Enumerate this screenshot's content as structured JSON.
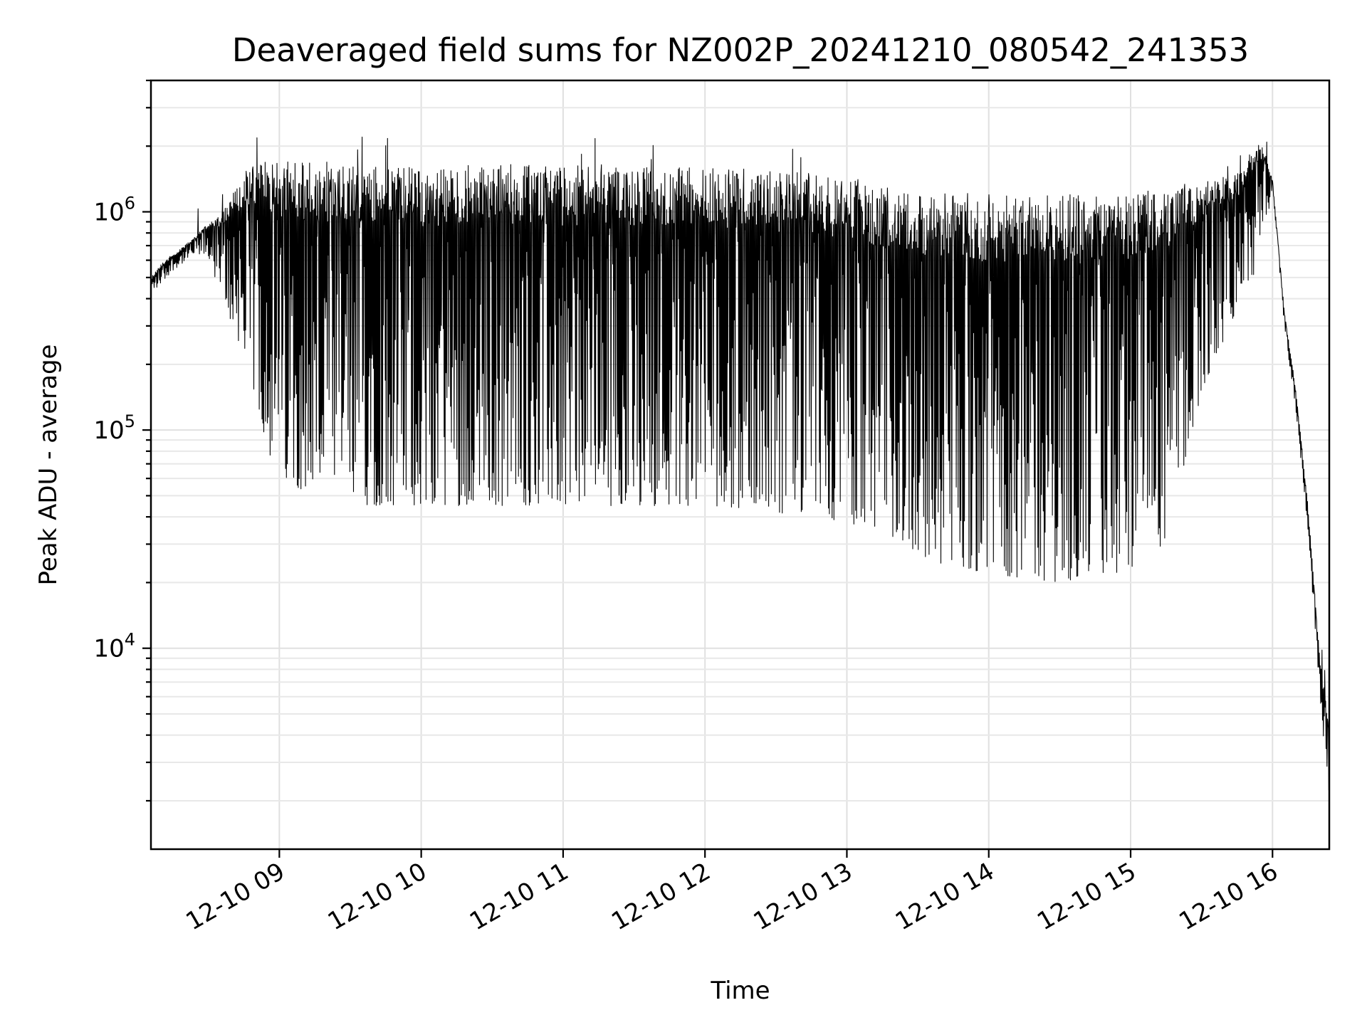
{
  "chart_data": {
    "type": "line",
    "title": "Deaveraged field sums for NZ002P_20241210_080542_241353",
    "xlabel": "Time",
    "ylabel": "Peak ADU - average",
    "yscale": "log",
    "xlim": [
      "2024-12-10 08:05:42",
      "2024-12-10 16:24:00"
    ],
    "ylim": [
      1200,
      4000000
    ],
    "x_ticks": [
      {
        "value": "2024-12-10 09:00",
        "label": "12-10 09"
      },
      {
        "value": "2024-12-10 10:00",
        "label": "12-10 10"
      },
      {
        "value": "2024-12-10 11:00",
        "label": "12-10 11"
      },
      {
        "value": "2024-12-10 12:00",
        "label": "12-10 12"
      },
      {
        "value": "2024-12-10 13:00",
        "label": "12-10 13"
      },
      {
        "value": "2024-12-10 14:00",
        "label": "12-10 14"
      },
      {
        "value": "2024-12-10 15:00",
        "label": "12-10 15"
      },
      {
        "value": "2024-12-10 16:00",
        "label": "12-10 16"
      }
    ],
    "y_ticks": [
      {
        "value": 10000,
        "base": "10",
        "exp": "4"
      },
      {
        "value": 100000,
        "base": "10",
        "exp": "5"
      },
      {
        "value": 1000000,
        "base": "10",
        "exp": "6"
      }
    ],
    "grid": true,
    "color": "#000000",
    "series": [
      {
        "x": [
          "2024-12-10 08:05:42",
          "2024-12-10 08:10",
          "2024-12-10 08:15",
          "2024-12-10 08:20",
          "2024-12-10 08:25",
          "2024-12-10 08:30",
          "2024-12-10 08:35",
          "2024-12-10 08:40",
          "2024-12-10 08:45",
          "2024-12-10 08:50",
          "2024-12-10 08:55",
          "2024-12-10 09:00",
          "2024-12-10 09:15",
          "2024-12-10 09:30",
          "2024-12-10 10:00",
          "2024-12-10 10:30",
          "2024-12-10 11:00",
          "2024-12-10 11:30",
          "2024-12-10 12:00",
          "2024-12-10 12:30",
          "2024-12-10 13:00",
          "2024-12-10 13:20",
          "2024-12-10 13:35",
          "2024-12-10 14:00",
          "2024-12-10 14:30",
          "2024-12-10 15:00",
          "2024-12-10 15:15",
          "2024-12-10 15:30",
          "2024-12-10 15:45",
          "2024-12-10 15:55",
          "2024-12-10 16:00",
          "2024-12-10 16:05",
          "2024-12-10 16:10",
          "2024-12-10 16:15",
          "2024-12-10 16:20",
          "2024-12-10 16:24"
        ],
        "high": [
          500000,
          580000,
          640000,
          700000,
          780000,
          900000,
          1000000,
          1200000,
          1500000,
          1700000,
          1700000,
          1700000,
          1700000,
          1700000,
          1600000,
          1650000,
          1650000,
          1650000,
          1600000,
          1550000,
          1450000,
          1300000,
          1250000,
          1200000,
          1200000,
          1200000,
          1300000,
          1400000,
          1500000,
          2200000,
          1400000,
          350000,
          150000,
          45000,
          9000,
          4500
        ],
        "low": [
          420000,
          470000,
          540000,
          590000,
          640000,
          620000,
          420000,
          300000,
          220000,
          140000,
          80000,
          60000,
          50000,
          45000,
          45000,
          45000,
          45000,
          45000,
          45000,
          42000,
          38000,
          32000,
          25000,
          22000,
          20000,
          22000,
          30000,
          150000,
          350000,
          600000,
          1300000,
          300000,
          120000,
          35000,
          6000,
          2000
        ]
      }
    ]
  }
}
